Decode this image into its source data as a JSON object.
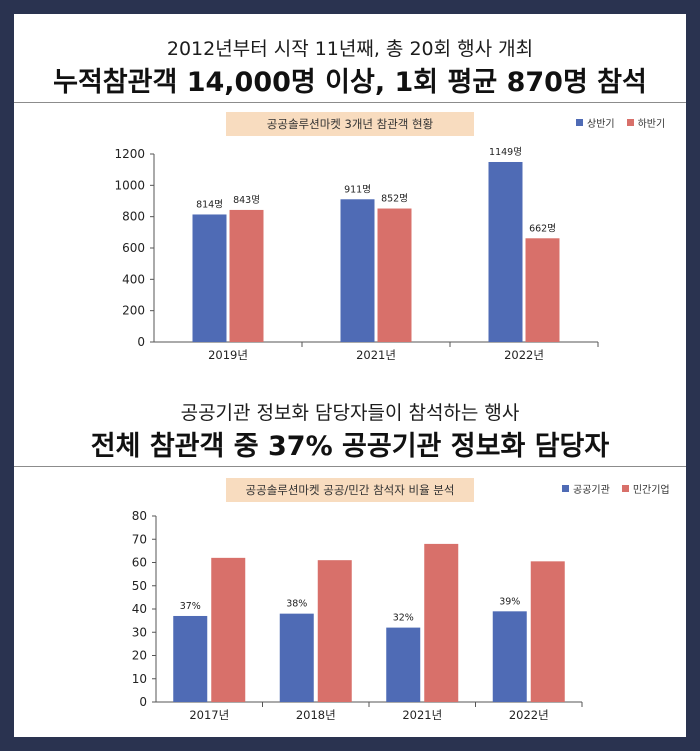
{
  "header1": {
    "subtitle": "2012년부터 시작 11년째, 총 20회 행사 개최",
    "title": "누적참관객 14,000명 이상, 1회 평균 870명 참석"
  },
  "header2": {
    "subtitle": "공공기관 정보화 담당자들이 참석하는 행사",
    "title": "전체 참관객 중 37% 공공기관 정보화 담당자"
  },
  "colors": {
    "blue": "#4f6bb5",
    "red": "#d8706a",
    "badge": "#f8dcbf"
  },
  "chart_data": [
    {
      "type": "bar",
      "title": "공공솔루션마켓 3개년 참관객 현황",
      "categories": [
        "2019년",
        "2021년",
        "2022년"
      ],
      "series": [
        {
          "name": "상반기",
          "values": [
            814,
            911,
            1149
          ],
          "labels": [
            "814명",
            "911명",
            "1149명"
          ]
        },
        {
          "name": "하반기",
          "values": [
            843,
            852,
            662
          ],
          "labels": [
            "843명",
            "852명",
            "662명"
          ]
        }
      ],
      "ylim": [
        0,
        1200
      ],
      "yticks": [
        0,
        200,
        400,
        600,
        800,
        1000,
        1200
      ],
      "legend": "top-right",
      "grid": false
    },
    {
      "type": "bar",
      "title": "공공솔루션마켓 공공/민간 참석자 비율 분석",
      "categories": [
        "2017년",
        "2018년",
        "2021년",
        "2022년"
      ],
      "series": [
        {
          "name": "공공기관",
          "values": [
            37,
            38,
            32,
            39
          ],
          "labels": [
            "37%",
            "38%",
            "32%",
            "39%"
          ]
        },
        {
          "name": "민간기업",
          "values": [
            62,
            61,
            68,
            60.5
          ],
          "labels": [
            "",
            "",
            "",
            ""
          ]
        }
      ],
      "ylim": [
        0,
        80
      ],
      "yticks": [
        0,
        10,
        20,
        30,
        40,
        50,
        60,
        70,
        80
      ],
      "legend": "top-right",
      "grid": false
    }
  ]
}
